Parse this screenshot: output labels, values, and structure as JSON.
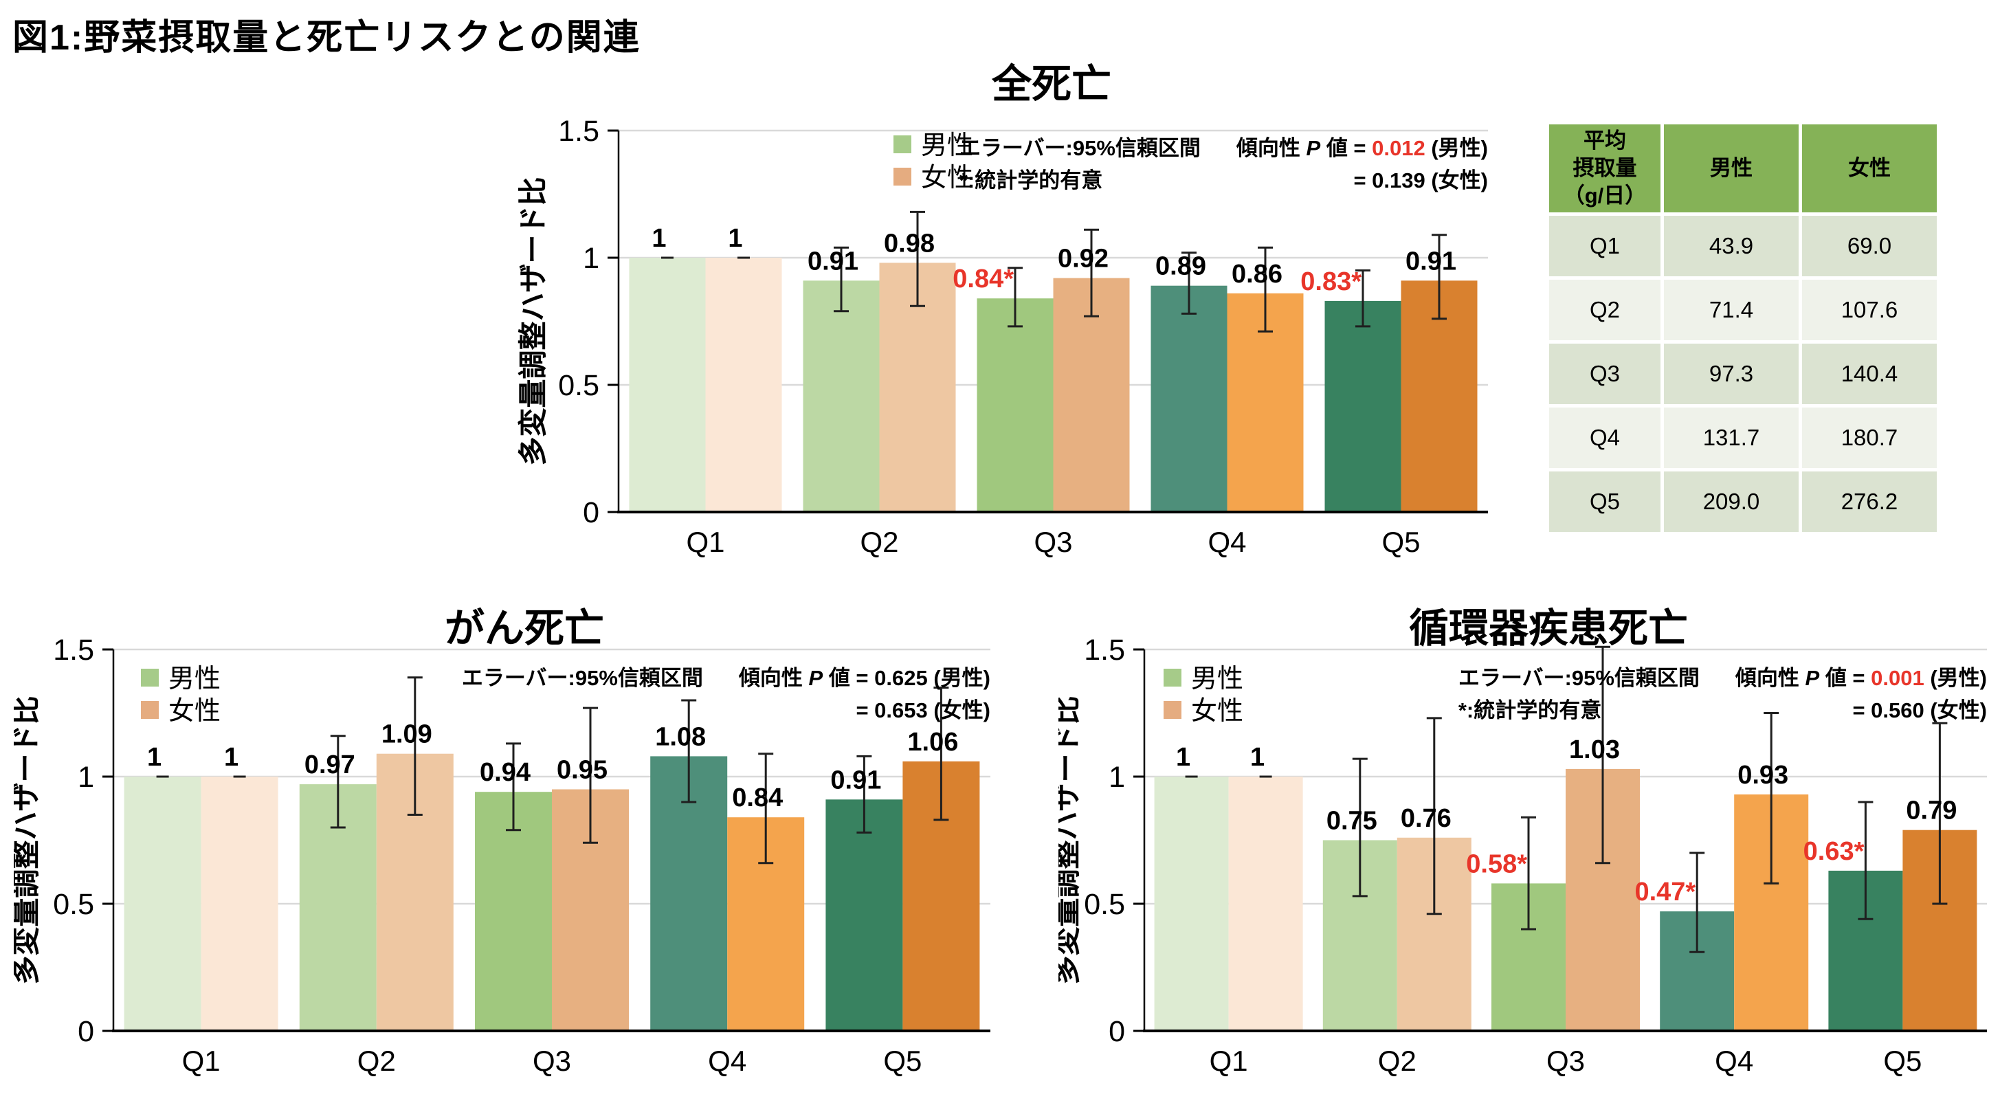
{
  "figure_title": "図1:野菜摂取量と死亡リスクとの関連",
  "colors": {
    "male_bars": [
      "#ddebd2",
      "#bcd8a4",
      "#a0c87e",
      "#4e8f7a",
      "#388260"
    ],
    "female_bars": [
      "#fbe7d6",
      "#eec7a2",
      "#e7b081",
      "#f4a44d",
      "#d9812f"
    ],
    "legend_male": "#a6cb89",
    "legend_female": "#e5ac80",
    "significant_red": "#e8352a",
    "error_bar": "#1f1f1f",
    "gridline": "#d9d9d9",
    "axis": "#000000",
    "text": "#000000",
    "table_header_bg": "#85b257",
    "table_row_odd_bg": "#dbe3d1",
    "table_row_even_bg": "#eff2ea"
  },
  "chart_data": [
    {
      "id": "all-cause-mortality",
      "type": "bar",
      "title": "全死亡",
      "ylabel": "多変量調整ハザード比",
      "ylim": [
        0,
        1.5
      ],
      "yticks": [
        "0",
        "0.5",
        "1",
        "1.5"
      ],
      "grid": true,
      "legend_position": "top-left-inside",
      "categories": [
        "Q1",
        "Q2",
        "Q3",
        "Q4",
        "Q5"
      ],
      "legend": [
        "男性",
        "女性"
      ],
      "annotation": {
        "errorbar_note": "エラーバー:95%信頼区間",
        "sig_note": "*:統計学的有意",
        "trend_word": "傾向性",
        "p_symbol": "P",
        "value_word": "値",
        "p_male": "0.012",
        "p_male_red": true,
        "male_suffix": "(男性)",
        "p_female": "0.139",
        "female_suffix": "(女性)"
      },
      "series": [
        {
          "name": "男性",
          "values": [
            1,
            0.91,
            0.84,
            0.89,
            0.83
          ],
          "labels": [
            "1",
            "0.91",
            "0.84*",
            "0.89",
            "0.83*"
          ],
          "significant": [
            false,
            false,
            true,
            false,
            true
          ],
          "ci_low": [
            1,
            0.79,
            0.73,
            0.78,
            0.73
          ],
          "ci_high": [
            1,
            1.04,
            0.96,
            1.02,
            0.95
          ]
        },
        {
          "name": "女性",
          "values": [
            1,
            0.98,
            0.92,
            0.86,
            0.91
          ],
          "labels": [
            "1",
            "0.98",
            "0.92",
            "0.86",
            "0.91"
          ],
          "significant": [
            false,
            false,
            false,
            false,
            false
          ],
          "ci_low": [
            1,
            0.81,
            0.77,
            0.71,
            0.76
          ],
          "ci_high": [
            1,
            1.18,
            1.11,
            1.04,
            1.09
          ]
        }
      ]
    },
    {
      "id": "cancer-mortality",
      "type": "bar",
      "title": "がん死亡",
      "ylabel": "多変量調整ハザード比",
      "ylim": [
        0,
        1.5
      ],
      "yticks": [
        "0",
        "0.5",
        "1",
        "1.5"
      ],
      "grid": true,
      "legend_position": "top-left-inside",
      "categories": [
        "Q1",
        "Q2",
        "Q3",
        "Q4",
        "Q5"
      ],
      "legend": [
        "男性",
        "女性"
      ],
      "annotation": {
        "errorbar_note": "エラーバー:95%信頼区間",
        "sig_note": "",
        "trend_word": "傾向性",
        "p_symbol": "P",
        "value_word": "値",
        "p_male": "0.625",
        "p_male_red": false,
        "male_suffix": "(男性)",
        "p_female": "0.653",
        "female_suffix": "(女性)"
      },
      "series": [
        {
          "name": "男性",
          "values": [
            1,
            0.97,
            0.94,
            1.08,
            0.91
          ],
          "labels": [
            "1",
            "0.97",
            "0.94",
            "1.08",
            "0.91"
          ],
          "significant": [
            false,
            false,
            false,
            false,
            false
          ],
          "ci_low": [
            1,
            0.8,
            0.79,
            0.9,
            0.78
          ],
          "ci_high": [
            1,
            1.16,
            1.13,
            1.3,
            1.08
          ]
        },
        {
          "name": "女性",
          "values": [
            1,
            1.09,
            0.95,
            0.84,
            1.06
          ],
          "labels": [
            "1",
            "1.09",
            "0.95",
            "0.84",
            "1.06"
          ],
          "significant": [
            false,
            false,
            false,
            false,
            false
          ],
          "ci_low": [
            1,
            0.85,
            0.74,
            0.66,
            0.83
          ],
          "ci_high": [
            1,
            1.39,
            1.27,
            1.09,
            1.35
          ]
        }
      ]
    },
    {
      "id": "cardiovascular-mortality",
      "type": "bar",
      "title": "循環器疾患死亡",
      "ylabel": "多変量調整ハザード比",
      "ylim": [
        0,
        1.5
      ],
      "yticks": [
        "0",
        "0.5",
        "1",
        "1.5"
      ],
      "grid": true,
      "legend_position": "top-left-inside",
      "categories": [
        "Q1",
        "Q2",
        "Q3",
        "Q4",
        "Q5"
      ],
      "legend": [
        "男性",
        "女性"
      ],
      "annotation": {
        "errorbar_note": "エラーバー:95%信頼区間",
        "sig_note": "*:統計学的有意",
        "trend_word": "傾向性",
        "p_symbol": "P",
        "value_word": "値",
        "p_male": "0.001",
        "p_male_red": true,
        "male_suffix": "(男性)",
        "p_female": "0.560",
        "female_suffix": "(女性)"
      },
      "series": [
        {
          "name": "男性",
          "values": [
            1,
            0.75,
            0.58,
            0.47,
            0.63
          ],
          "labels": [
            "1",
            "0.75",
            "0.58*",
            "0.47*",
            "0.63*"
          ],
          "significant": [
            false,
            false,
            true,
            true,
            true
          ],
          "ci_low": [
            1,
            0.53,
            0.4,
            0.31,
            0.44
          ],
          "ci_high": [
            1,
            1.07,
            0.84,
            0.7,
            0.9
          ]
        },
        {
          "name": "女性",
          "values": [
            1,
            0.76,
            1.03,
            0.93,
            0.79
          ],
          "labels": [
            "1",
            "0.76",
            "1.03",
            "0.93",
            "0.79"
          ],
          "significant": [
            false,
            false,
            false,
            false,
            false
          ],
          "ci_low": [
            1,
            0.46,
            0.66,
            0.58,
            0.5
          ],
          "ci_high": [
            1,
            1.23,
            1.51,
            1.25,
            1.21
          ]
        }
      ]
    }
  ],
  "table": {
    "headers": [
      "平均\n摂取量\n（g/日）",
      "男性",
      "女性"
    ],
    "rows": [
      [
        "Q1",
        "43.9",
        "69.0"
      ],
      [
        "Q2",
        "71.4",
        "107.6"
      ],
      [
        "Q3",
        "97.3",
        "140.4"
      ],
      [
        "Q4",
        "131.7",
        "180.7"
      ],
      [
        "Q5",
        "209.0",
        "276.2"
      ]
    ]
  }
}
